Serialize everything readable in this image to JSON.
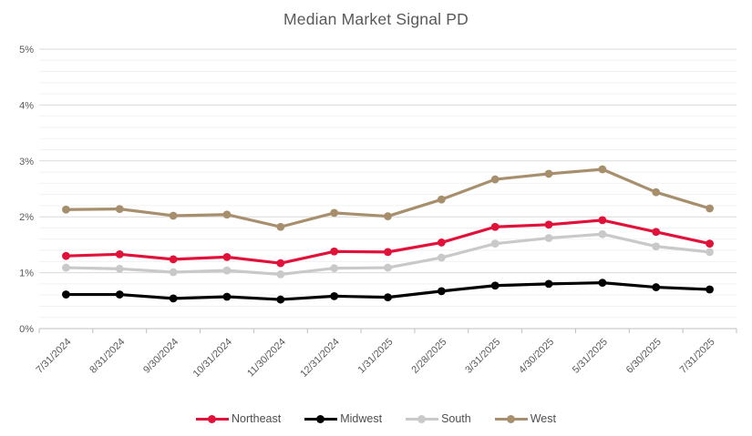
{
  "title": "Median Market Signal PD",
  "chart_data": {
    "type": "line",
    "title": "Median Market Signal PD",
    "categories": [
      "7/31/2024",
      "8/31/2024",
      "9/30/2024",
      "10/31/2024",
      "11/30/2024",
      "12/31/2024",
      "1/31/2025",
      "2/28/2025",
      "3/31/2025",
      "4/30/2025",
      "5/31/2025",
      "6/30/2025",
      "7/31/2025"
    ],
    "series": [
      {
        "name": "Northeast",
        "color": "#e0123a",
        "values": [
          1.3,
          1.33,
          1.24,
          1.28,
          1.17,
          1.38,
          1.37,
          1.54,
          1.82,
          1.86,
          1.94,
          1.73,
          1.52
        ]
      },
      {
        "name": "Midwest",
        "color": "#000000",
        "values": [
          0.61,
          0.61,
          0.54,
          0.57,
          0.52,
          0.58,
          0.56,
          0.67,
          0.77,
          0.8,
          0.82,
          0.74,
          0.7
        ]
      },
      {
        "name": "South",
        "color": "#c9c9c9",
        "values": [
          1.09,
          1.07,
          1.01,
          1.04,
          0.97,
          1.08,
          1.09,
          1.27,
          1.52,
          1.62,
          1.69,
          1.47,
          1.37
        ]
      },
      {
        "name": "West",
        "color": "#a78f6e",
        "values": [
          2.13,
          2.14,
          2.02,
          2.04,
          1.82,
          2.07,
          2.01,
          2.31,
          2.67,
          2.77,
          2.85,
          2.44,
          2.15
        ]
      }
    ],
    "xlabel": "",
    "ylabel": "",
    "y_ticks": [
      "0%",
      "1%",
      "2%",
      "3%",
      "4%",
      "5%"
    ],
    "ylim": [
      0,
      5
    ],
    "y_major_step": 1,
    "y_minor_step": 0.2,
    "grid": "major+minor horizontal",
    "legend_position": "bottom",
    "x_label_rotation_deg": -45
  }
}
